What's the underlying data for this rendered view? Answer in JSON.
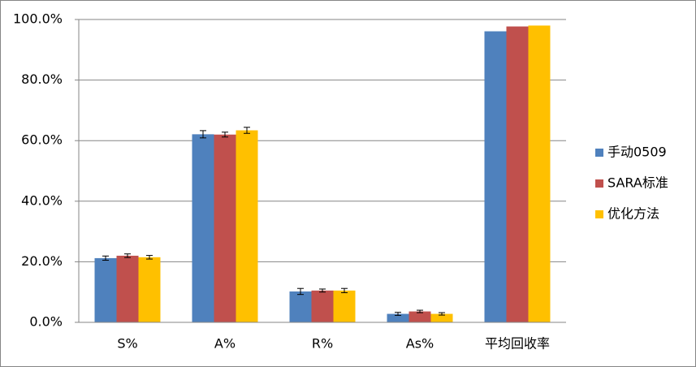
{
  "chart_data": {
    "type": "bar",
    "categories": [
      "S%",
      "A%",
      "R%",
      "As%",
      "平均回收率"
    ],
    "series": [
      {
        "name": "手动0509",
        "color": "#4f81bd",
        "values": [
          21.2,
          62.1,
          10.2,
          2.8,
          96.1
        ],
        "errors": [
          0.7,
          1.2,
          1.0,
          0.5,
          null
        ]
      },
      {
        "name": "SARA标准",
        "color": "#c0504d",
        "values": [
          22.0,
          62.0,
          10.5,
          3.6,
          97.7
        ],
        "errors": [
          0.6,
          0.8,
          0.5,
          0.4,
          null
        ]
      },
      {
        "name": "优化方法",
        "color": "#ffc000",
        "values": [
          21.5,
          63.4,
          10.5,
          2.8,
          98.0
        ],
        "errors": [
          0.6,
          1.0,
          0.7,
          0.4,
          null
        ]
      }
    ],
    "ylim": [
      0,
      100
    ],
    "yticks": [
      {
        "value": 0,
        "label": "0.0%"
      },
      {
        "value": 20,
        "label": "20.0%"
      },
      {
        "value": 40,
        "label": "40.0%"
      },
      {
        "value": 60,
        "label": "60.0%"
      },
      {
        "value": 80,
        "label": "80.0%"
      },
      {
        "value": 100,
        "label": "100.0%"
      }
    ],
    "grid": true,
    "legend": "right"
  }
}
